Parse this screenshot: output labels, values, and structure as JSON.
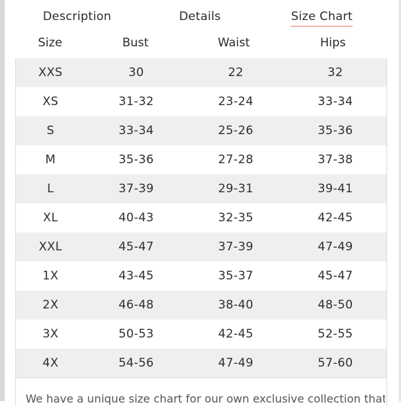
{
  "tabs": {
    "description": "Description",
    "details": "Details",
    "size_chart": "Size Chart"
  },
  "columns": [
    "Size",
    "Bust",
    "Waist",
    "Hips"
  ],
  "rows": [
    {
      "size": "XXS",
      "bust": "30",
      "waist": "22",
      "hips": "32"
    },
    {
      "size": "XS",
      "bust": "31-32",
      "waist": "23-24",
      "hips": "33-34"
    },
    {
      "size": "S",
      "bust": "33-34",
      "waist": "25-26",
      "hips": "35-36"
    },
    {
      "size": "M",
      "bust": "35-36",
      "waist": "27-28",
      "hips": "37-38"
    },
    {
      "size": "L",
      "bust": "37-39",
      "waist": "29-31",
      "hips": "39-41"
    },
    {
      "size": "XL",
      "bust": "40-43",
      "waist": "32-35",
      "hips": "42-45"
    },
    {
      "size": "XXL",
      "bust": "45-47",
      "waist": "37-39",
      "hips": "47-49"
    },
    {
      "size": "1X",
      "bust": "43-45",
      "waist": "35-37",
      "hips": "45-47"
    },
    {
      "size": "2X",
      "bust": "46-48",
      "waist": "38-40",
      "hips": "48-50"
    },
    {
      "size": "3X",
      "bust": "50-53",
      "waist": "42-45",
      "hips": "52-55"
    },
    {
      "size": "4X",
      "bust": "54-56",
      "waist": "47-49",
      "hips": "57-60"
    }
  ],
  "note": "We have a unique size chart for our own exclusive collection that",
  "colors": {
    "accent_underline": "#f2b6a9",
    "row_alt": "#efefef"
  }
}
